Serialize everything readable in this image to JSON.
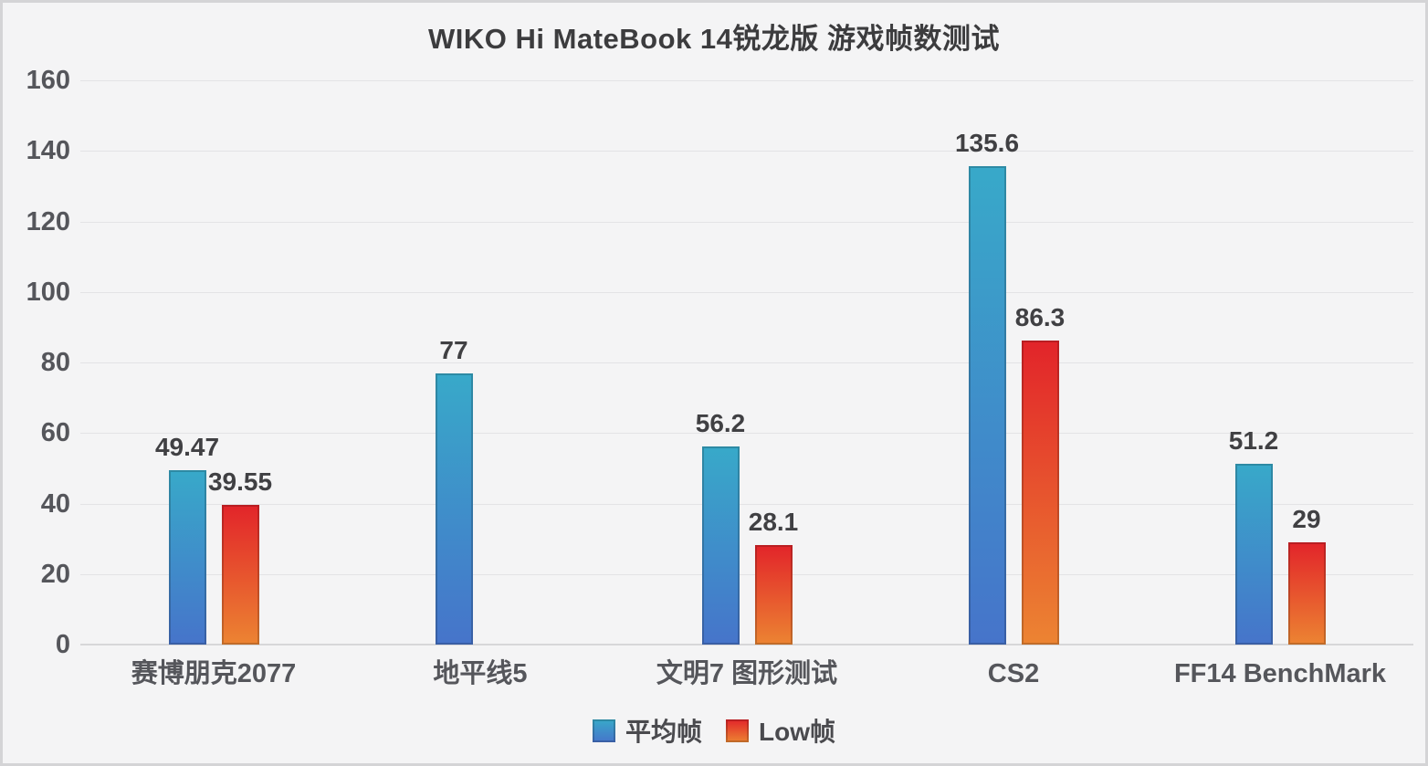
{
  "chart_data": {
    "type": "bar",
    "title": "WIKO Hi MateBook 14锐龙版 游戏帧数测试",
    "categories": [
      "赛博朋克2077",
      "地平线5",
      "文明7 图形测试",
      "CS2",
      "FF14 BenchMark"
    ],
    "series": [
      {
        "key": "avg-frame",
        "name": "平均帧",
        "values": [
          49.47,
          77,
          56.2,
          135.6,
          51.2
        ],
        "value_labels": [
          "49.47",
          "77",
          "56.2",
          "135.6",
          "51.2"
        ],
        "color_top": "#38a9c9",
        "color_bottom": "#4674ca"
      },
      {
        "key": "low-frame",
        "name": "Low帧",
        "values": [
          39.55,
          null,
          28.1,
          86.3,
          29
        ],
        "value_labels": [
          "39.55",
          "",
          "28.1",
          "86.3",
          "29"
        ],
        "color_top": "#e2242a",
        "color_bottom": "#ec8432"
      }
    ],
    "ylim": [
      0,
      160
    ],
    "ytick_step": 20,
    "ytick_labels": [
      "0",
      "20",
      "40",
      "60",
      "80",
      "100",
      "120",
      "140",
      "160"
    ],
    "grid": true,
    "legend_position": "bottom",
    "background_color": "#f4f4f5",
    "gridline_color": "#e3e3e5",
    "text_color": "#55565b"
  }
}
